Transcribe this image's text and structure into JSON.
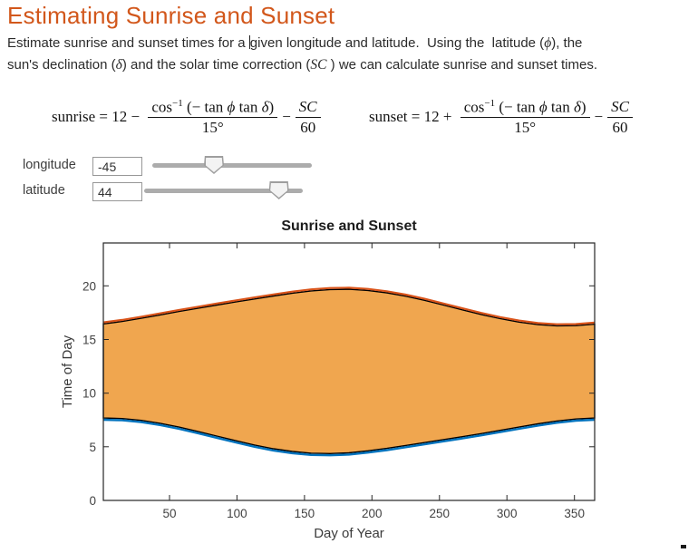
{
  "doc": {
    "title": "Estimating Sunrise and Sunset",
    "intro_line1": [
      {
        "t": "Estimate sunrise and sunset times for a "
      },
      {
        "caret": true
      },
      {
        "t": "given longitude and latitude.  Using the  latitude ("
      },
      {
        "t": "ϕ",
        "math": true
      },
      {
        "t": "), the"
      }
    ],
    "intro_line2": [
      {
        "t": "sun's declination ("
      },
      {
        "t": "δ",
        "math": true
      },
      {
        "t": ") and the solar time correction ("
      },
      {
        "t": "SC",
        "math": true
      },
      {
        "t": " ) we can calculate sunrise and sunset times."
      }
    ]
  },
  "formulas": [
    {
      "lead": "sunrise = 12 − ",
      "num_fn": "cos",
      "num_sup": "−1",
      "num_open": " (− tan ",
      "phi": "ϕ",
      "num_mid": " tan ",
      "delta": "δ",
      "num_close": ")",
      "den": "15°",
      "op2": "−",
      "num2": "SC",
      "den2": "60"
    },
    {
      "lead": "sunset = 12 + ",
      "num_fn": "cos",
      "num_sup": "−1",
      "num_open": " (− tan ",
      "phi": "ϕ",
      "num_mid": " tan ",
      "delta": "δ",
      "num_close": ")",
      "den": "15°",
      "op2": "−",
      "num2": "SC",
      "den2": "60"
    }
  ],
  "controls": [
    {
      "label": "longitude",
      "value": "-45",
      "slider_pos": 0.37
    },
    {
      "label": "latitude",
      "value": "44",
      "slider_pos": 0.9
    }
  ],
  "chart_data": {
    "type": "area",
    "title": "Sunrise and Sunset",
    "xlabel": "Day of Year",
    "ylabel": "Time of Day",
    "xlim": [
      1,
      365
    ],
    "ylim": [
      0,
      24
    ],
    "xticks": [
      50,
      100,
      150,
      200,
      250,
      300,
      350
    ],
    "yticks": [
      0,
      5,
      10,
      15,
      20
    ],
    "grid": false,
    "legend": "none",
    "fill_between": [
      "sunset",
      "sunrise"
    ],
    "fill_color": "#f0a64f",
    "edge_color": "#000000",
    "axis_color": "#262626",
    "x": [
      1,
      15,
      29,
      43,
      57,
      71,
      85,
      99,
      113,
      127,
      141,
      155,
      169,
      183,
      197,
      211,
      225,
      239,
      253,
      267,
      281,
      295,
      309,
      323,
      337,
      351,
      365
    ],
    "series": [
      {
        "name": "sunset",
        "color": "#d95319",
        "values": [
          16.45,
          16.68,
          16.98,
          17.29,
          17.61,
          17.91,
          18.21,
          18.5,
          18.78,
          19.06,
          19.32,
          19.53,
          19.66,
          19.68,
          19.57,
          19.35,
          19.04,
          18.65,
          18.21,
          17.76,
          17.33,
          16.94,
          16.62,
          16.39,
          16.28,
          16.29,
          16.43
        ]
      },
      {
        "name": "sunrise",
        "color": "#0072bd",
        "values": [
          7.68,
          7.63,
          7.46,
          7.19,
          6.84,
          6.43,
          6.0,
          5.57,
          5.16,
          4.82,
          4.56,
          4.4,
          4.37,
          4.44,
          4.62,
          4.85,
          5.12,
          5.39,
          5.67,
          5.94,
          6.23,
          6.53,
          6.84,
          7.14,
          7.4,
          7.59,
          7.68
        ]
      }
    ]
  }
}
